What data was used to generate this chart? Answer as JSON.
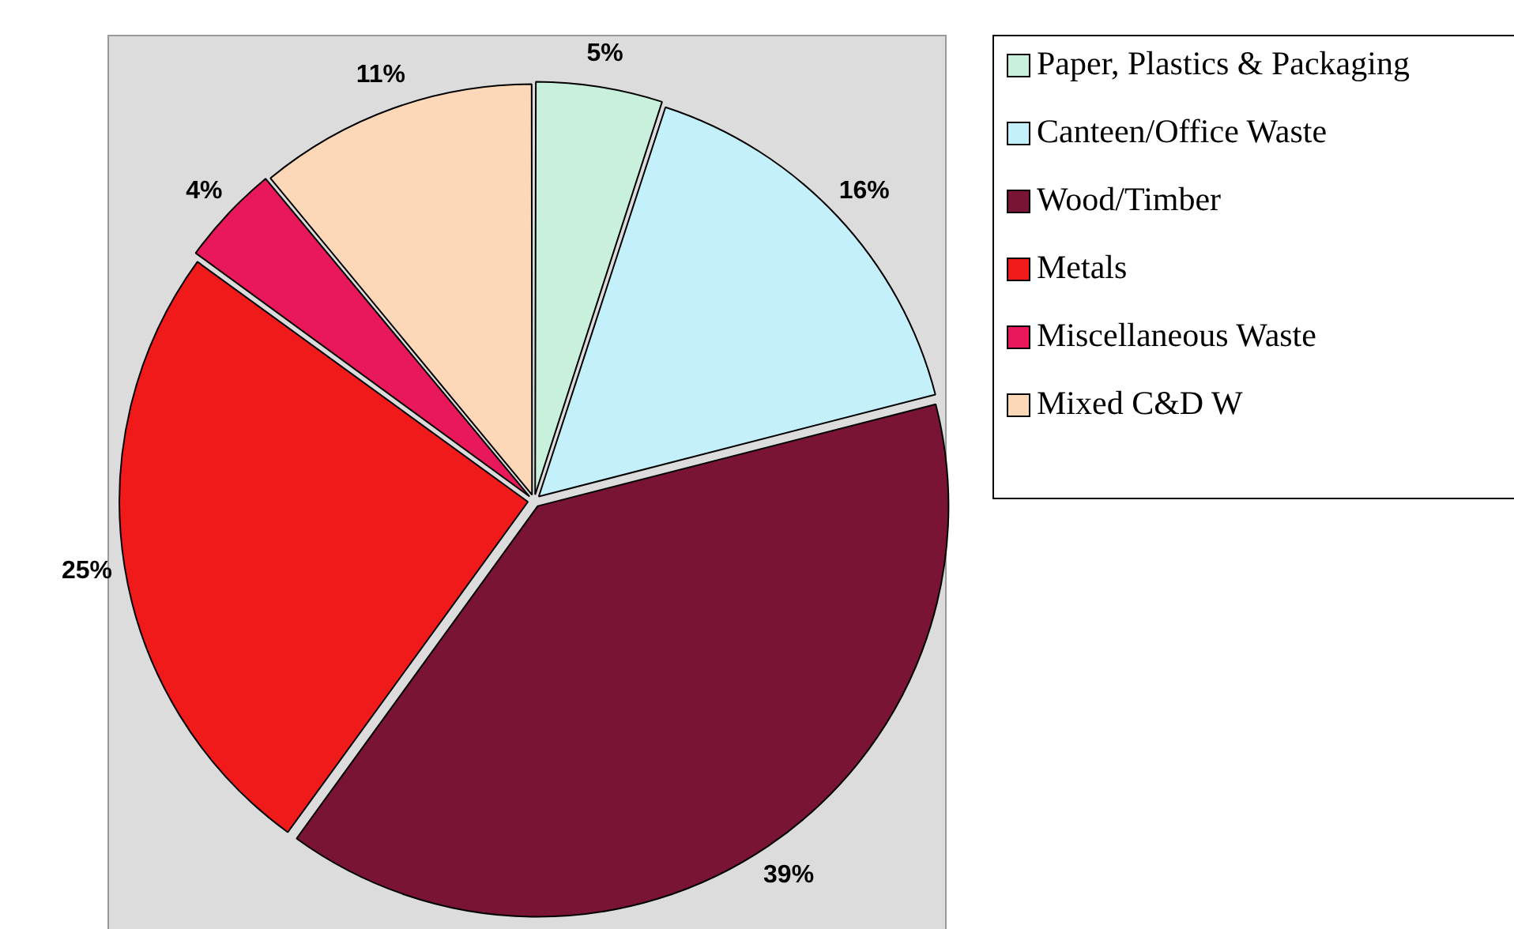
{
  "chart_data": {
    "type": "pie",
    "categories": [
      "Paper, Plastics & Packaging",
      "Canteen/Office Waste",
      "Wood/Timber",
      "Metals",
      "Miscellaneous Waste",
      "Mixed C&D W"
    ],
    "values": [
      5,
      16,
      39,
      25,
      4,
      11
    ],
    "value_labels": [
      "5%",
      "16%",
      "39%",
      "25%",
      "4%",
      "11%"
    ],
    "colors": [
      "#c8f0dc",
      "#c4f0fc",
      "#7a1434",
      "#f01a1a",
      "#e8185a",
      "#fcd8b8"
    ],
    "legend": "right"
  }
}
